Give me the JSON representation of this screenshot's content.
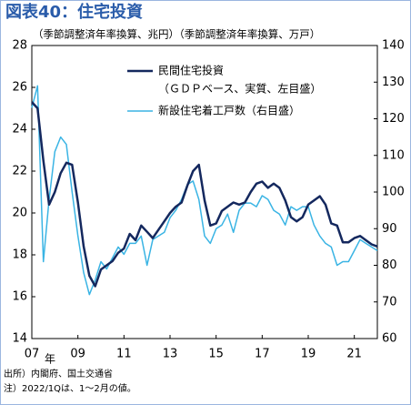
{
  "chart_data": {
    "type": "line",
    "title": "図表40：住宅投資",
    "subtitle": "（季節調整済年率換算、兆円）（季節調整済年率換算、万戸）",
    "x_unit": "年",
    "notes": [
      "出所）内閣府、国土交通省",
      "注）2022/1Qは、1～2月の値。"
    ],
    "x": [
      2007,
      2007.25,
      2007.5,
      2007.75,
      2008,
      2008.25,
      2008.5,
      2008.75,
      2009,
      2009.25,
      2009.5,
      2009.75,
      2010,
      2010.25,
      2010.5,
      2010.75,
      2011,
      2011.25,
      2011.5,
      2011.75,
      2012,
      2012.25,
      2012.5,
      2012.75,
      2013,
      2013.25,
      2013.5,
      2013.75,
      2014,
      2014.25,
      2014.5,
      2014.75,
      2015,
      2015.25,
      2015.5,
      2015.75,
      2016,
      2016.25,
      2016.5,
      2016.75,
      2017,
      2017.25,
      2017.5,
      2017.75,
      2018,
      2018.25,
      2018.5,
      2018.75,
      2019,
      2019.25,
      2019.5,
      2019.75,
      2020,
      2020.25,
      2020.5,
      2020.75,
      2021,
      2021.25,
      2021.5,
      2021.75,
      2022
    ],
    "xlim": [
      2007,
      2022
    ],
    "xticks": [
      {
        "value": 2007,
        "label": "07"
      },
      {
        "value": 2009,
        "label": "09"
      },
      {
        "value": 2011,
        "label": "11"
      },
      {
        "value": 2013,
        "label": "13"
      },
      {
        "value": 2015,
        "label": "15"
      },
      {
        "value": 2017,
        "label": "17"
      },
      {
        "value": 2019,
        "label": "19"
      },
      {
        "value": 2021,
        "label": "21"
      }
    ],
    "ylim": [
      14,
      28
    ],
    "yticks": [
      14,
      16,
      18,
      20,
      22,
      24,
      26,
      28
    ],
    "y2lim": [
      60,
      140
    ],
    "y2ticks": [
      60,
      70,
      80,
      90,
      100,
      110,
      120,
      130,
      140
    ],
    "legend": "upper right",
    "series": [
      {
        "name": "民間住宅投資",
        "note": "（ＧＤＰベース、実質、左目盛）",
        "color": "#14285e",
        "axis": "y",
        "values": [
          25.3,
          25.0,
          22.5,
          20.4,
          21.0,
          21.9,
          22.4,
          22.3,
          20.5,
          18.4,
          17.0,
          16.5,
          17.3,
          17.5,
          17.7,
          18.1,
          18.3,
          19.0,
          18.7,
          19.4,
          19.1,
          18.8,
          19.2,
          19.6,
          20.0,
          20.3,
          20.5,
          21.3,
          22.0,
          22.3,
          20.6,
          19.4,
          19.5,
          20.1,
          20.3,
          20.5,
          20.4,
          20.5,
          21.0,
          21.4,
          21.5,
          21.2,
          21.4,
          21.2,
          20.6,
          19.8,
          19.6,
          19.8,
          20.4,
          20.6,
          20.8,
          20.4,
          19.5,
          19.4,
          18.6,
          18.6,
          18.8,
          18.9,
          18.7,
          18.5,
          18.4
        ]
      },
      {
        "name": "新設住宅着工戸数（右目盛）",
        "color": "#3ab4e4",
        "axis": "y2",
        "values": [
          123,
          129,
          81,
          98,
          111,
          115,
          113,
          100,
          88,
          78,
          72,
          76,
          81,
          79,
          82,
          85,
          83,
          86,
          86,
          88,
          80,
          87,
          88,
          89,
          93,
          95,
          98,
          102,
          103,
          98,
          88,
          86,
          90,
          91,
          94,
          89,
          95,
          97,
          97,
          96,
          99,
          98,
          95,
          94,
          91,
          96,
          95,
          96,
          96,
          91,
          88,
          86,
          85,
          80,
          81,
          81,
          84,
          87,
          86,
          85,
          84
        ]
      }
    ]
  }
}
